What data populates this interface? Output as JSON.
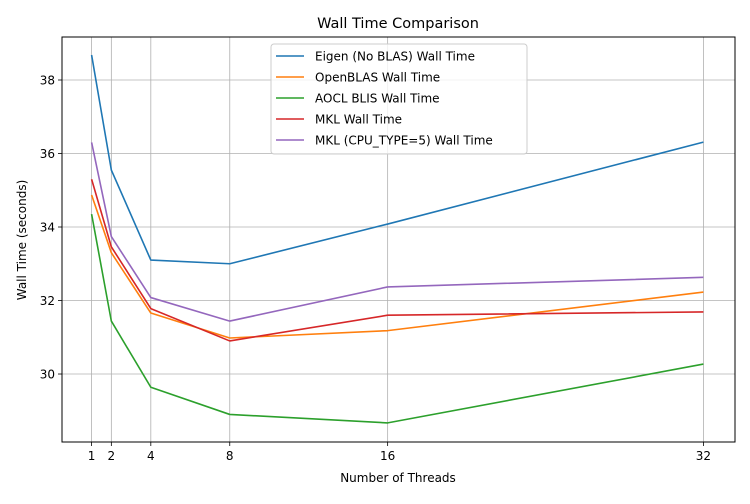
{
  "chart_data": {
    "type": "line",
    "title": "Wall Time Comparison",
    "xlabel": "Number of Threads",
    "ylabel": "Wall Time (seconds)",
    "x": [
      1,
      2,
      4,
      8,
      16,
      32
    ],
    "x_ticks": [
      1,
      2,
      4,
      8,
      16,
      32
    ],
    "y_ticks": [
      30,
      32,
      34,
      36,
      38
    ],
    "xlim": [
      -0.5,
      33.6
    ],
    "ylim": [
      28.15,
      39.17
    ],
    "grid": true,
    "legend_position": "top-center",
    "series": [
      {
        "name": "Eigen (No BLAS) Wall Time",
        "color": "#1f77b4",
        "values": [
          38.68,
          35.55,
          33.1,
          33.0,
          34.08,
          36.31
        ]
      },
      {
        "name": "OpenBLAS Wall Time",
        "color": "#ff7f0e",
        "values": [
          34.87,
          33.3,
          31.66,
          30.98,
          31.18,
          32.23
        ]
      },
      {
        "name": "AOCL BLIS Wall Time",
        "color": "#2ca02c",
        "values": [
          34.35,
          31.44,
          29.64,
          28.9,
          28.67,
          30.27
        ]
      },
      {
        "name": "MKL Wall Time",
        "color": "#d62728",
        "values": [
          35.3,
          33.46,
          31.78,
          30.9,
          31.6,
          31.69
        ]
      },
      {
        "name": "MKL (CPU_TYPE=5) Wall Time",
        "color": "#9467bd",
        "values": [
          36.3,
          33.74,
          32.08,
          31.44,
          32.37,
          32.63
        ]
      }
    ]
  }
}
